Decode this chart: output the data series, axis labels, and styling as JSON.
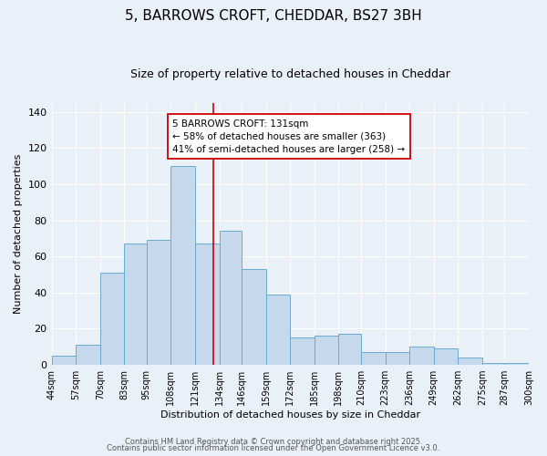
{
  "title": "5, BARROWS CROFT, CHEDDAR, BS27 3BH",
  "subtitle": "Size of property relative to detached houses in Cheddar",
  "xlabel": "Distribution of detached houses by size in Cheddar",
  "ylabel": "Number of detached properties",
  "bin_labels": [
    "44sqm",
    "57sqm",
    "70sqm",
    "83sqm",
    "95sqm",
    "108sqm",
    "121sqm",
    "134sqm",
    "146sqm",
    "159sqm",
    "172sqm",
    "185sqm",
    "198sqm",
    "210sqm",
    "223sqm",
    "236sqm",
    "249sqm",
    "262sqm",
    "275sqm",
    "287sqm",
    "300sqm"
  ],
  "bin_edges": [
    44,
    57,
    70,
    83,
    95,
    108,
    121,
    134,
    146,
    159,
    172,
    185,
    198,
    210,
    223,
    236,
    249,
    262,
    275,
    287,
    300
  ],
  "bar_heights": [
    5,
    11,
    51,
    67,
    69,
    110,
    67,
    74,
    53,
    39,
    15,
    16,
    17,
    7,
    7,
    10,
    9,
    4,
    1,
    1
  ],
  "bar_color": "#c5d8ec",
  "bar_edgecolor": "#6aabd2",
  "property_size": 131,
  "vline_color": "#cc0000",
  "annotation_line1": "5 BARROWS CROFT: 131sqm",
  "annotation_line2": "← 58% of detached houses are smaller (363)",
  "annotation_line3": "41% of semi-detached houses are larger (258) →",
  "annotation_box_edgecolor": "#cc0000",
  "annotation_box_facecolor": "#ffffff",
  "ylim": [
    0,
    145
  ],
  "yticks": [
    0,
    20,
    40,
    60,
    80,
    100,
    120,
    140
  ],
  "footnote1": "Contains HM Land Registry data © Crown copyright and database right 2025.",
  "footnote2": "Contains public sector information licensed under the Open Government Licence v3.0.",
  "bg_color": "#eaf0f8",
  "grid_color": "#ffffff",
  "title_fontsize": 11,
  "subtitle_fontsize": 9,
  "annotation_fontsize": 7.5
}
